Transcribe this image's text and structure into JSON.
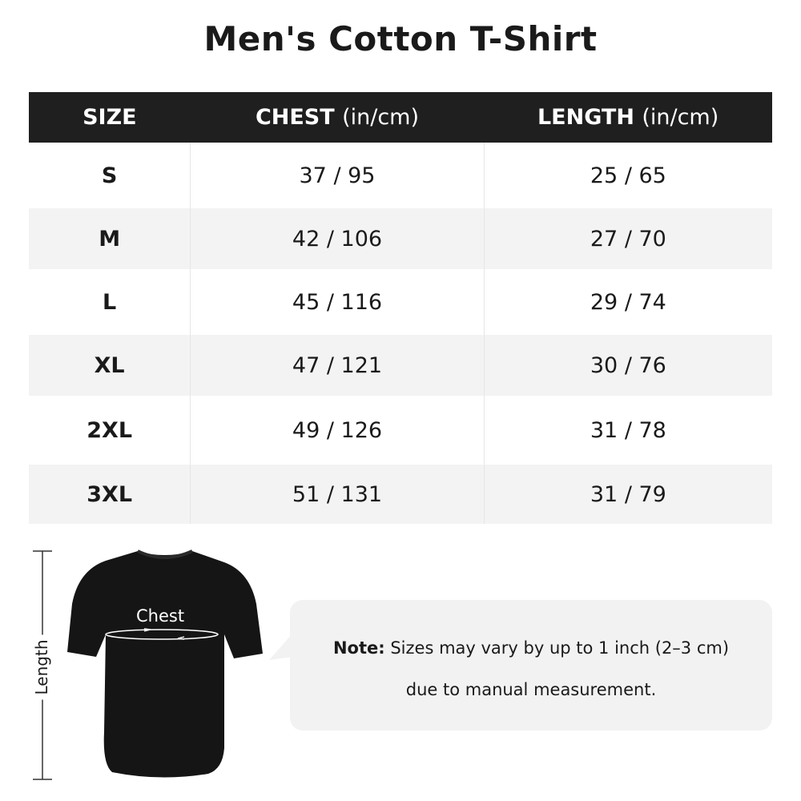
{
  "title": "Men's Cotton T-Shirt",
  "table": {
    "headers": [
      {
        "label": "SIZE",
        "unit": ""
      },
      {
        "label": "CHEST",
        "unit": "(in/cm)"
      },
      {
        "label": "LENGTH",
        "unit": "(in/cm)"
      }
    ],
    "rows": [
      [
        "S",
        "37 / 95",
        "25 / 65"
      ],
      [
        "M",
        "42 / 106",
        "27 / 70"
      ],
      [
        "L",
        "45 / 116",
        "29 / 74"
      ],
      [
        "XL",
        "47 / 121",
        "30 / 76"
      ],
      [
        "2XL",
        "49 / 126",
        "31 / 78"
      ],
      [
        "3XL",
        "51 / 131",
        "31 / 79"
      ]
    ]
  },
  "diagram": {
    "length_label": "Length",
    "chest_label": "Chest"
  },
  "note": {
    "prefix": "Note:",
    "line1": "Sizes may vary by up to 1 inch (2–3 cm)",
    "line2": "due to manual measurement."
  },
  "colors": {
    "header_bg": "#1f1f1f",
    "alt_row": "#f3f3f3",
    "note_bg": "#f2f2f2"
  }
}
